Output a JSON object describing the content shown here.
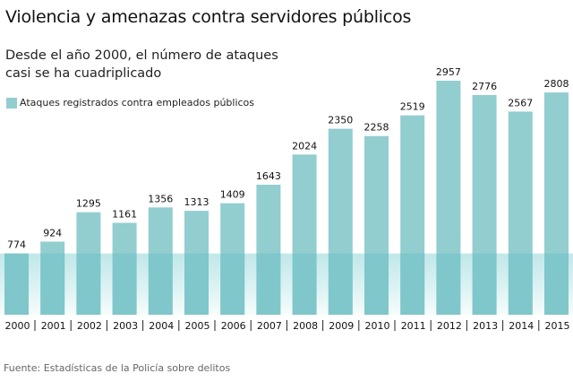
{
  "header": {
    "title": "Violencia y amenazas contra servidores públicos",
    "subtitle_line1": "Desde el año 2000, el número de ataques",
    "subtitle_line2": "casi se ha cuadriplicado"
  },
  "footer": {
    "source": "Fuente: Estadísticas de la Policía sobre delitos"
  },
  "colors": {
    "bar": "#92cdd0",
    "band_top": "#c2e8ea",
    "band_dark": "#6fc2c5"
  },
  "chart_data": {
    "type": "bar",
    "title": "Violencia y amenazas contra servidores públicos",
    "subtitle": "Desde el año 2000, el número de ataques casi se ha cuadriplicado",
    "legend": [
      "Ataques registrados contra empleados públicos"
    ],
    "legend_position": "top-left",
    "categories": [
      "2000",
      "2001",
      "2002",
      "2003",
      "2004",
      "2005",
      "2006",
      "2007",
      "2008",
      "2009",
      "2010",
      "2011",
      "2012",
      "2013",
      "2014",
      "2015"
    ],
    "series": [
      {
        "name": "Ataques registrados contra empleados públicos",
        "values": [
          774,
          924,
          1295,
          1161,
          1356,
          1313,
          1409,
          1643,
          2024,
          2350,
          2258,
          2519,
          2957,
          2776,
          2567,
          2808
        ]
      }
    ],
    "highlight_band": {
      "from": 0,
      "to": 774,
      "note": "baseline level of year 2000 highlighted across all bars"
    },
    "xlabel": "",
    "ylabel": "",
    "ylim": [
      0,
      2957
    ],
    "grid": false,
    "source": "Fuente: Estadísticas de la Policía sobre delitos"
  }
}
